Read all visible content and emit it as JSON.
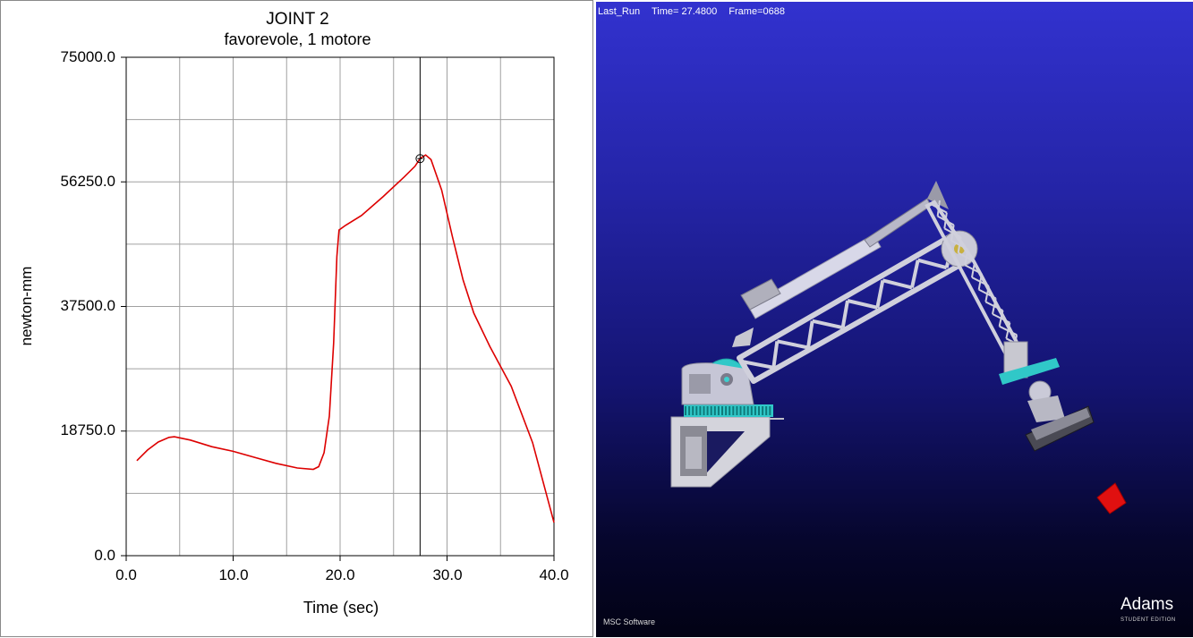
{
  "plot": {
    "title": "JOINT 2",
    "subtitle": "favorevole, 1 motore",
    "y_axis_label": "newton-mm",
    "x_axis_label": "Time (sec)",
    "y_tick_labels": [
      "75000.0",
      "56250.0",
      "37500.0",
      "18750.0",
      "0.0"
    ],
    "x_tick_labels": [
      "0.0",
      "10.0",
      "20.0",
      "30.0",
      "40.0"
    ]
  },
  "chart_data": {
    "type": "line",
    "xlim": [
      0,
      40
    ],
    "ylim": [
      0,
      75000
    ],
    "x_ticks": [
      0,
      10,
      20,
      30,
      40
    ],
    "y_ticks": [
      0,
      18750,
      37500,
      56250,
      75000
    ],
    "grid": true,
    "cursor_x": 27.48,
    "series": [
      {
        "color": "#dd0000",
        "points": [
          [
            1.0,
            14300
          ],
          [
            2.0,
            15900
          ],
          [
            3.0,
            17100
          ],
          [
            4.0,
            17800
          ],
          [
            4.5,
            17900
          ],
          [
            6.0,
            17400
          ],
          [
            8.0,
            16400
          ],
          [
            10.0,
            15700
          ],
          [
            12.0,
            14800
          ],
          [
            14.0,
            13900
          ],
          [
            16.0,
            13200
          ],
          [
            17.5,
            13000
          ],
          [
            18.0,
            13400
          ],
          [
            18.5,
            15500
          ],
          [
            19.0,
            21000
          ],
          [
            19.4,
            32000
          ],
          [
            19.7,
            45000
          ],
          [
            19.9,
            49000
          ],
          [
            20.5,
            49700
          ],
          [
            22.0,
            51200
          ],
          [
            24.0,
            54000
          ],
          [
            26.0,
            57000
          ],
          [
            27.0,
            58600
          ],
          [
            27.5,
            59800
          ],
          [
            28.0,
            60300
          ],
          [
            28.5,
            59600
          ],
          [
            29.5,
            55000
          ],
          [
            30.5,
            48000
          ],
          [
            31.5,
            41500
          ],
          [
            32.5,
            36500
          ],
          [
            34.0,
            31500
          ],
          [
            36.0,
            25500
          ],
          [
            38.0,
            17000
          ],
          [
            40.0,
            5000
          ]
        ]
      }
    ]
  },
  "viewport": {
    "run_name": "Last_Run",
    "time_text": "Time= 27.4800",
    "frame_text": "Frame=0688",
    "vendor_logo": "MSC Software",
    "product_logo": "Adams",
    "edition_text": "STUDENT EDITION"
  },
  "colors": {
    "curve": "#dd0000",
    "grid": "#a0a0a0",
    "viewport_top": "#3232cf",
    "viewport_bottom": "#020214",
    "robot_body": "#c8c8d8",
    "gears": "#30c8c8",
    "target": "#e01010"
  }
}
